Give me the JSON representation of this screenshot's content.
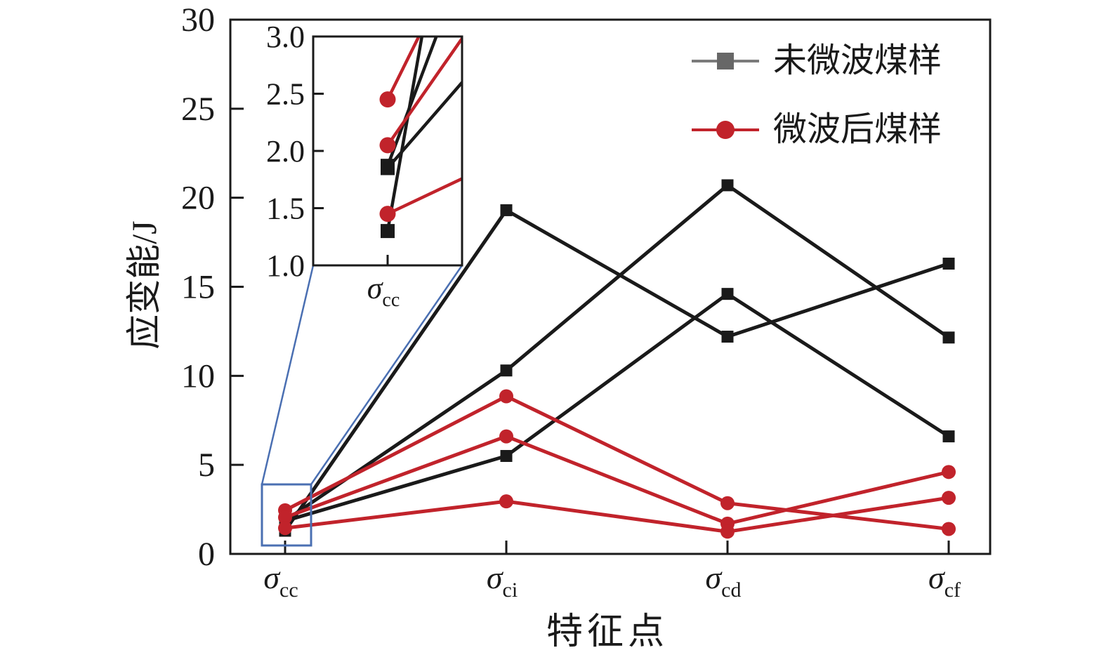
{
  "figure": {
    "background": "#ffffff",
    "text_color": "#1a1a1a"
  },
  "chart_data": {
    "type": "line",
    "title": "",
    "xlabel": "特征点",
    "ylabel": "应变能/J",
    "categories": [
      {
        "label": "σcc",
        "sigma": "σ",
        "sub": "cc"
      },
      {
        "label": "σci",
        "sigma": "σ",
        "sub": "ci"
      },
      {
        "label": "σcd",
        "sigma": "σ",
        "sub": "cd"
      },
      {
        "label": "σcf",
        "sigma": "σ",
        "sub": "cf"
      }
    ],
    "y_axis": {
      "min": 0,
      "max": 30,
      "ticks": [
        0,
        5,
        10,
        15,
        20,
        25,
        30
      ],
      "tick_labels": [
        "0",
        "5",
        "10",
        "15",
        "20",
        "25",
        "30"
      ]
    },
    "legend": [
      {
        "label": "未微波煤样",
        "marker": "square",
        "line_color": "#7b7b7b",
        "marker_color": "#676767"
      },
      {
        "label": "微波后煤样",
        "marker": "circle",
        "line_color": "#c1232b",
        "marker_color": "#c1232b"
      }
    ],
    "series": [
      {
        "name": "未微波煤样",
        "sample": 1,
        "marker": "square",
        "color": "#1a1a1a",
        "values": [
          1.3,
          19.3,
          12.2,
          16.3
        ]
      },
      {
        "name": "未微波煤样",
        "sample": 2,
        "marker": "square",
        "color": "#1a1a1a",
        "values": [
          1.87,
          10.3,
          20.7,
          12.15
        ]
      },
      {
        "name": "未微波煤样",
        "sample": 3,
        "marker": "square",
        "color": "#1a1a1a",
        "values": [
          1.85,
          5.5,
          14.6,
          6.6
        ]
      },
      {
        "name": "微波后煤样",
        "sample": 1,
        "marker": "circle",
        "color": "#c1232b",
        "values": [
          2.45,
          8.85,
          2.85,
          1.4
        ]
      },
      {
        "name": "微波后煤样",
        "sample": 2,
        "marker": "circle",
        "color": "#c1232b",
        "values": [
          2.05,
          6.6,
          1.7,
          4.6
        ]
      },
      {
        "name": "微波后煤样",
        "sample": 3,
        "marker": "circle",
        "color": "#c1232b",
        "values": [
          1.45,
          2.95,
          1.25,
          3.15
        ]
      }
    ],
    "inset": {
      "zoomed_category": "σcc",
      "x_tick_label": {
        "sigma": "σ",
        "sub": "cc"
      },
      "y_axis": {
        "min": 1.0,
        "max": 3.0,
        "ticks": [
          1.0,
          1.5,
          2.0,
          2.5,
          3.0
        ],
        "tick_labels": [
          "1.0",
          "1.5",
          "2.0",
          "2.5",
          "3.0"
        ]
      }
    },
    "colors": {
      "black_series": "#1a1a1a",
      "red_series": "#c1232b",
      "axis": "#1a1a1a",
      "zoom_box_blue": "#4a6fb2"
    },
    "layout_hints": {
      "legend_position": "top-right-inside",
      "grid": false,
      "frame": "full-box",
      "ticks": "inward"
    }
  }
}
